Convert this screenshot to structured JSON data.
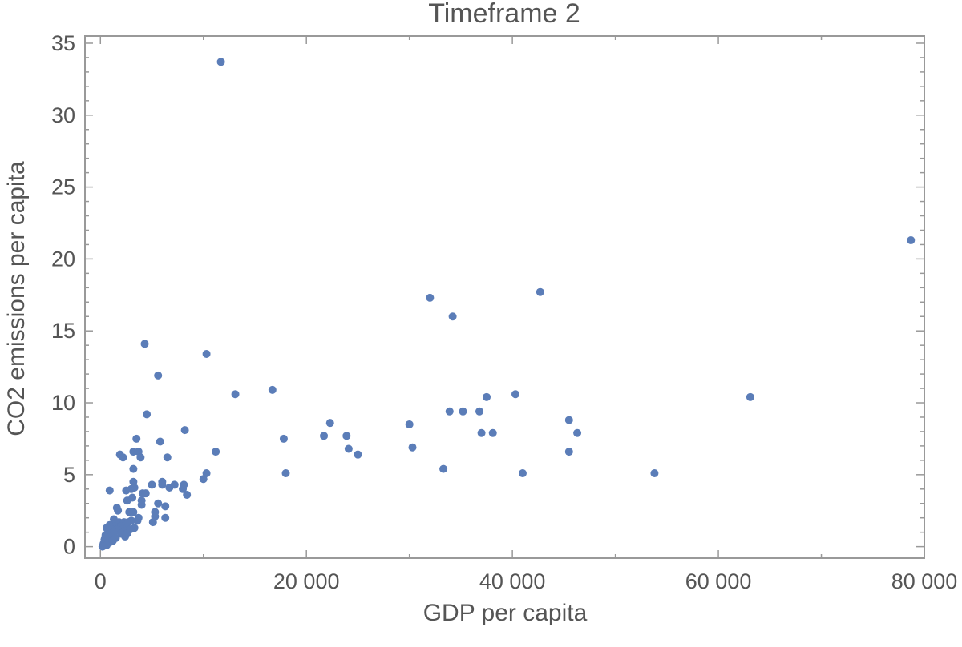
{
  "chart_data": {
    "type": "scatter",
    "title": "Timeframe 2",
    "xlabel": "GDP per capita",
    "ylabel": "CO2 emissions per capita",
    "xlim": [
      -1500,
      80000
    ],
    "ylim": [
      -0.8,
      35.5
    ],
    "xticks": [
      0,
      20000,
      40000,
      60000,
      80000
    ],
    "xtick_labels": [
      "0",
      "20 000",
      "40 000",
      "60 000",
      "80 000"
    ],
    "yticks": [
      0,
      5,
      10,
      15,
      20,
      25,
      30,
      35
    ],
    "ytick_labels": [
      "0",
      "5",
      "10",
      "15",
      "20",
      "25",
      "30",
      "35"
    ],
    "grid": false,
    "marker_color": "#5b7db8",
    "frame_color": "#999999",
    "series": [
      {
        "points": [
          [
            11700,
            33.7
          ],
          [
            78700,
            21.3
          ],
          [
            42700,
            17.7
          ],
          [
            32000,
            17.3
          ],
          [
            34200,
            16.0
          ],
          [
            4300,
            14.1
          ],
          [
            10300,
            13.4
          ],
          [
            5600,
            11.9
          ],
          [
            13100,
            10.6
          ],
          [
            16700,
            10.9
          ],
          [
            40300,
            10.6
          ],
          [
            37500,
            10.4
          ],
          [
            63100,
            10.4
          ],
          [
            4500,
            9.2
          ],
          [
            33900,
            9.4
          ],
          [
            35200,
            9.4
          ],
          [
            36800,
            9.4
          ],
          [
            22300,
            8.6
          ],
          [
            30000,
            8.5
          ],
          [
            45500,
            8.8
          ],
          [
            8200,
            8.1
          ],
          [
            21700,
            7.7
          ],
          [
            23900,
            7.7
          ],
          [
            37000,
            7.9
          ],
          [
            38100,
            7.9
          ],
          [
            46300,
            7.9
          ],
          [
            3500,
            7.5
          ],
          [
            5800,
            7.3
          ],
          [
            17800,
            7.5
          ],
          [
            30300,
            6.9
          ],
          [
            24100,
            6.8
          ],
          [
            25000,
            6.4
          ],
          [
            45500,
            6.6
          ],
          [
            11200,
            6.6
          ],
          [
            1900,
            6.4
          ],
          [
            2200,
            6.2
          ],
          [
            3200,
            6.6
          ],
          [
            3700,
            6.6
          ],
          [
            3900,
            6.2
          ],
          [
            6500,
            6.2
          ],
          [
            3200,
            5.4
          ],
          [
            33300,
            5.4
          ],
          [
            18000,
            5.1
          ],
          [
            41000,
            5.1
          ],
          [
            53800,
            5.1
          ],
          [
            10300,
            5.1
          ],
          [
            10000,
            4.7
          ],
          [
            6000,
            4.5
          ],
          [
            6000,
            4.3
          ],
          [
            7200,
            4.3
          ],
          [
            8100,
            4.3
          ],
          [
            3200,
            4.5
          ],
          [
            5000,
            4.3
          ],
          [
            6700,
            4.1
          ],
          [
            8000,
            4.0
          ],
          [
            900,
            3.9
          ],
          [
            2500,
            3.9
          ],
          [
            3000,
            4.0
          ],
          [
            3300,
            4.1
          ],
          [
            4100,
            3.7
          ],
          [
            4400,
            3.7
          ],
          [
            8400,
            3.6
          ],
          [
            2600,
            3.2
          ],
          [
            3100,
            3.4
          ],
          [
            4000,
            3.2
          ],
          [
            4000,
            2.9
          ],
          [
            5600,
            3.0
          ],
          [
            6300,
            2.8
          ],
          [
            1600,
            2.7
          ],
          [
            1700,
            2.5
          ],
          [
            2800,
            2.4
          ],
          [
            3200,
            2.4
          ],
          [
            5300,
            2.4
          ],
          [
            5300,
            2.1
          ],
          [
            6300,
            2.0
          ],
          [
            3700,
            2.0
          ],
          [
            1300,
            1.9
          ],
          [
            1800,
            1.7
          ],
          [
            2300,
            1.7
          ],
          [
            2700,
            1.7
          ],
          [
            3000,
            1.8
          ],
          [
            3600,
            1.8
          ],
          [
            5100,
            1.7
          ],
          [
            900,
            1.5
          ],
          [
            1400,
            1.4
          ],
          [
            2000,
            1.4
          ],
          [
            2600,
            1.3
          ],
          [
            3300,
            1.3
          ],
          [
            600,
            1.3
          ],
          [
            1100,
            1.2
          ],
          [
            1600,
            1.2
          ],
          [
            2400,
            1.1
          ],
          [
            2900,
            1.2
          ],
          [
            800,
            1.0
          ],
          [
            1300,
            1.0
          ],
          [
            2000,
            0.9
          ],
          [
            2600,
            0.9
          ],
          [
            500,
            0.8
          ],
          [
            1000,
            0.7
          ],
          [
            1500,
            0.6
          ],
          [
            2400,
            0.7
          ],
          [
            700,
            0.4
          ],
          [
            1200,
            0.4
          ],
          [
            300,
            0.2
          ],
          [
            900,
            0.3
          ],
          [
            400,
            0.5
          ],
          [
            200,
            0.0
          ],
          [
            600,
            0.1
          ]
        ]
      }
    ]
  }
}
